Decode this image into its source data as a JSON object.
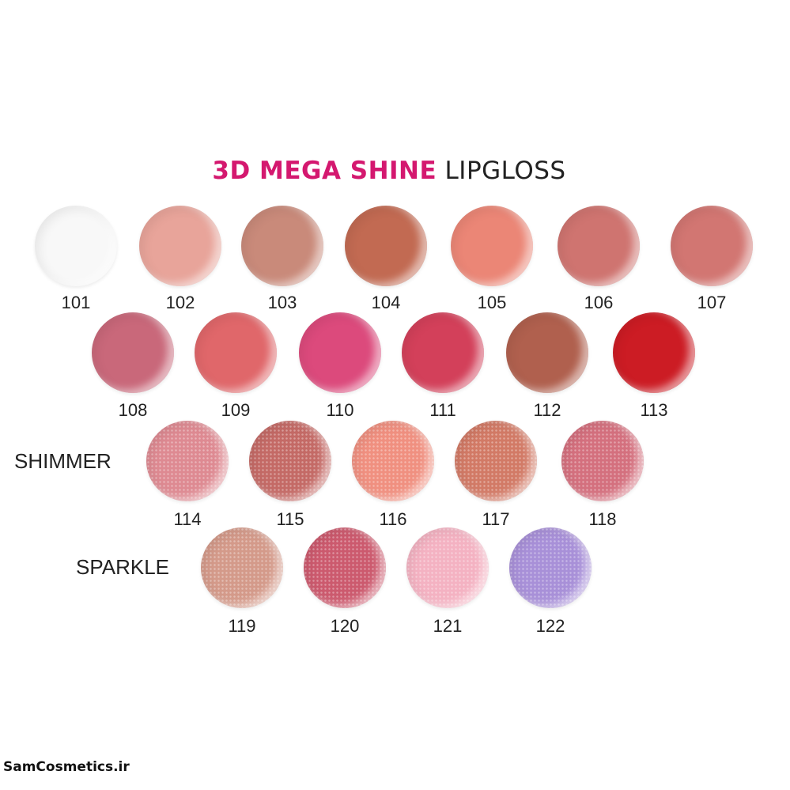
{
  "title": {
    "accent": "3D MEGA SHINE",
    "rest": "LIPGLOSS",
    "accent_color": "#d4186f"
  },
  "categories": {
    "shimmer": "SHIMMER",
    "sparkle": "SPARKLE"
  },
  "watermark": "SamCosmetics.ir",
  "rows": [
    {
      "finish": "gloss",
      "swatches": [
        {
          "code": "101",
          "color": "#f8f8f8"
        },
        {
          "code": "102",
          "color": "#e8a49a"
        },
        {
          "code": "103",
          "color": "#c98a7a"
        },
        {
          "code": "104",
          "color": "#c26a52"
        },
        {
          "code": "105",
          "color": "#eb8676"
        },
        {
          "code": "106",
          "color": "#cf7470"
        },
        {
          "code": "107",
          "color": "#d27672"
        }
      ]
    },
    {
      "finish": "gloss",
      "swatches": [
        {
          "code": "108",
          "color": "#c9687a"
        },
        {
          "code": "109",
          "color": "#e0676a"
        },
        {
          "code": "110",
          "color": "#dc4a7c"
        },
        {
          "code": "111",
          "color": "#d3405a"
        },
        {
          "code": "112",
          "color": "#b0604e"
        },
        {
          "code": "113",
          "color": "#cc1c24"
        }
      ]
    },
    {
      "finish": "shimmer",
      "swatches": [
        {
          "code": "114",
          "color": "#de8a92"
        },
        {
          "code": "115",
          "color": "#c46a66"
        },
        {
          "code": "116",
          "color": "#f09080"
        },
        {
          "code": "117",
          "color": "#d27a66"
        },
        {
          "code": "118",
          "color": "#d4707e"
        }
      ]
    },
    {
      "finish": "sparkle",
      "swatches": [
        {
          "code": "119",
          "color": "#d49a8a"
        },
        {
          "code": "120",
          "color": "#cc5a6e"
        },
        {
          "code": "121",
          "color": "#f4b2c2"
        },
        {
          "code": "122",
          "color": "#a890d8"
        }
      ]
    }
  ]
}
